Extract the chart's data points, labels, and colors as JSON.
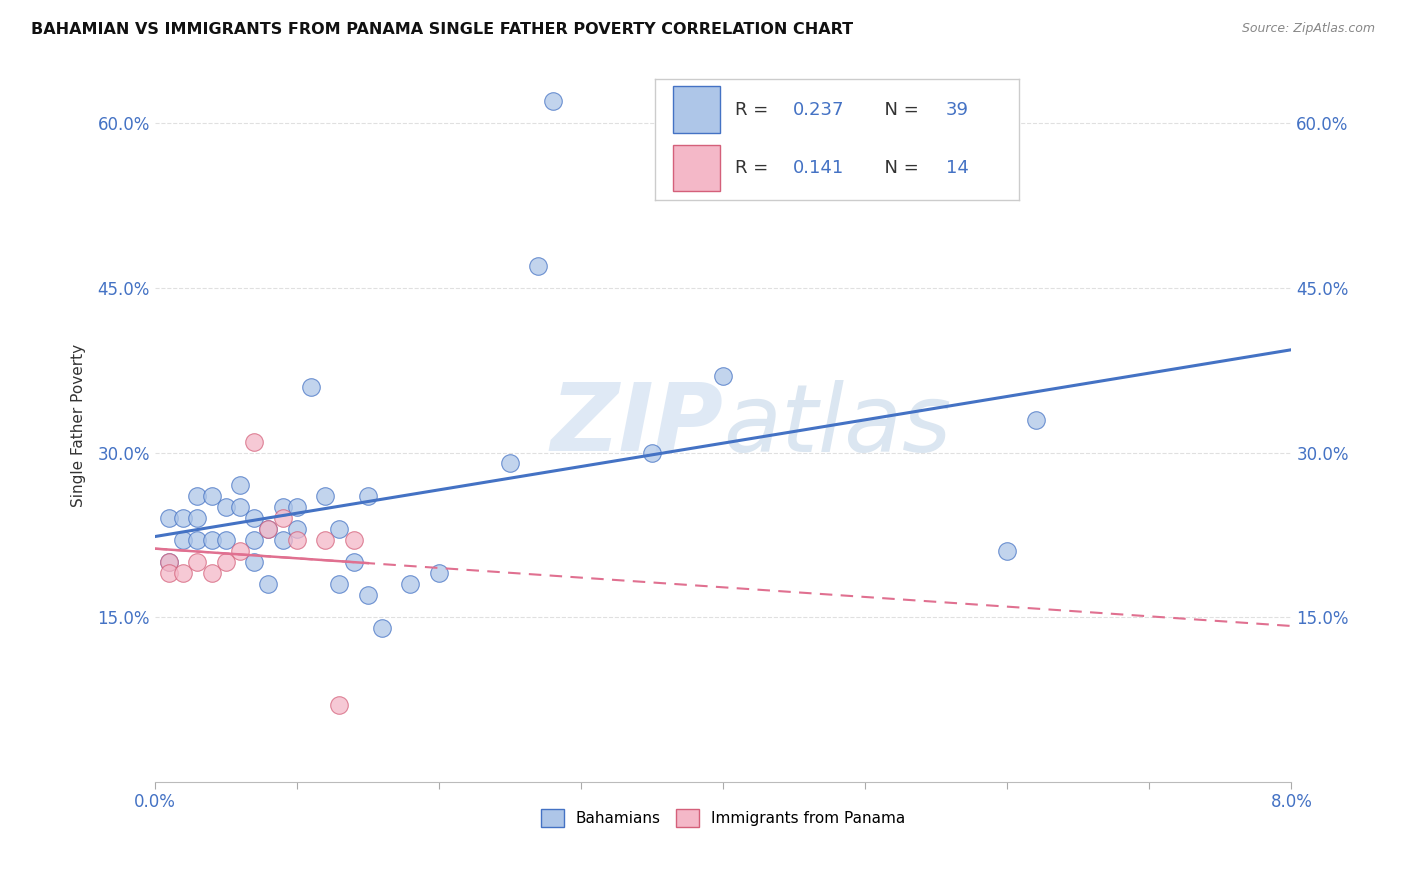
{
  "title": "BAHAMIAN VS IMMIGRANTS FROM PANAMA SINGLE FATHER POVERTY CORRELATION CHART",
  "source": "Source: ZipAtlas.com",
  "ylabel": "Single Father Poverty",
  "watermark_zip": "ZIP",
  "watermark_atlas": "atlas",
  "xlim": [
    0.0,
    0.08
  ],
  "ylim": [
    0.0,
    0.65
  ],
  "xtick_vals": [
    0.0,
    0.01,
    0.02,
    0.03,
    0.04,
    0.05,
    0.06,
    0.07,
    0.08
  ],
  "xtick_labels": [
    "0.0%",
    "",
    "",
    "",
    "",
    "",
    "",
    "",
    "8.0%"
  ],
  "ytick_vals": [
    0.15,
    0.3,
    0.45,
    0.6
  ],
  "ytick_labels": [
    "15.0%",
    "30.0%",
    "45.0%",
    "60.0%"
  ],
  "blue_fill": "#aec6e8",
  "blue_edge": "#4472c4",
  "pink_fill": "#f4b8c8",
  "pink_edge": "#d4607a",
  "blue_line": "#4472c4",
  "pink_line": "#e07090",
  "legend_R1": "0.237",
  "legend_N1": "39",
  "legend_R2": "0.141",
  "legend_N2": "14",
  "blue_label": "Bahamians",
  "pink_label": "Immigrants from Panama",
  "bahamian_x": [
    0.001,
    0.001,
    0.002,
    0.002,
    0.003,
    0.003,
    0.003,
    0.004,
    0.004,
    0.005,
    0.005,
    0.006,
    0.006,
    0.007,
    0.007,
    0.007,
    0.008,
    0.008,
    0.009,
    0.009,
    0.01,
    0.01,
    0.011,
    0.012,
    0.013,
    0.013,
    0.014,
    0.015,
    0.015,
    0.016,
    0.018,
    0.02,
    0.025,
    0.027,
    0.028,
    0.035,
    0.04,
    0.06,
    0.062
  ],
  "bahamian_y": [
    0.2,
    0.24,
    0.22,
    0.24,
    0.22,
    0.24,
    0.26,
    0.22,
    0.26,
    0.22,
    0.25,
    0.27,
    0.25,
    0.24,
    0.22,
    0.2,
    0.23,
    0.18,
    0.25,
    0.22,
    0.23,
    0.25,
    0.36,
    0.26,
    0.23,
    0.18,
    0.2,
    0.17,
    0.26,
    0.14,
    0.18,
    0.19,
    0.29,
    0.47,
    0.62,
    0.3,
    0.37,
    0.21,
    0.33
  ],
  "panama_x": [
    0.001,
    0.001,
    0.002,
    0.003,
    0.004,
    0.005,
    0.006,
    0.007,
    0.008,
    0.009,
    0.01,
    0.012,
    0.013,
    0.014
  ],
  "panama_y": [
    0.2,
    0.19,
    0.19,
    0.2,
    0.19,
    0.2,
    0.21,
    0.31,
    0.23,
    0.24,
    0.22,
    0.22,
    0.07,
    0.22
  ],
  "background_color": "#ffffff",
  "grid_color": "#e0e0e0",
  "text_color_blue": "#4472c4",
  "text_color_dark": "#333333"
}
